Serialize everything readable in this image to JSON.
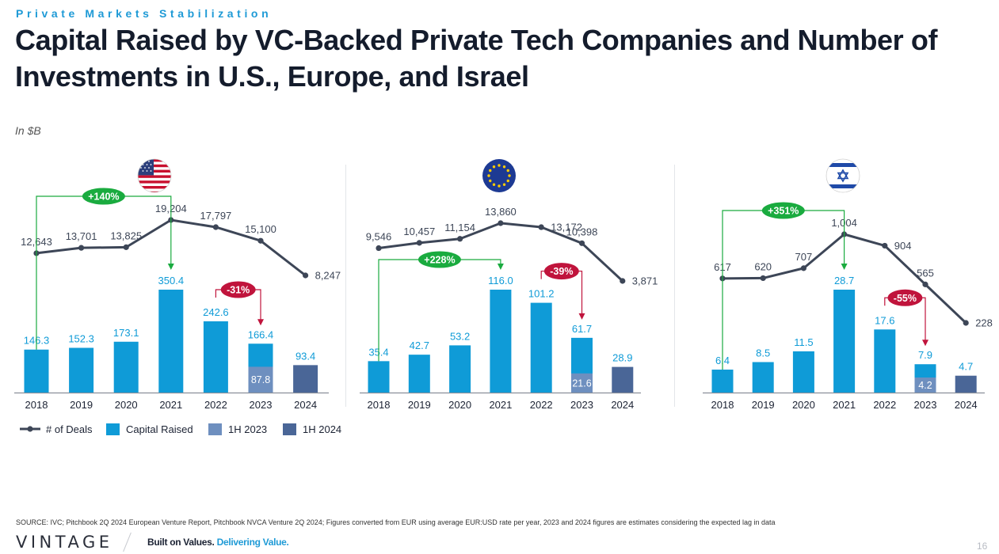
{
  "header": {
    "section": "Private Markets Stabilization",
    "title": "Capital Raised by VC-Backed Private Tech Companies and Number of Investments in U.S., Europe, and Israel",
    "units": "In $B"
  },
  "colors": {
    "capital": "#0f9bd7",
    "half2023": "#6e8fbf",
    "half2024": "#4a6697",
    "deals_line": "#3d4657",
    "growth": "#1aab3f",
    "decline": "#c0143c",
    "axis": "#8a8f99"
  },
  "flags": [
    "us-flag-icon",
    "eu-flag-icon",
    "israel-flag-icon"
  ],
  "chart_data": [
    {
      "type": "bar",
      "region": "U.S.",
      "categories": [
        "2018",
        "2019",
        "2020",
        "2021",
        "2022",
        "2023",
        "2024"
      ],
      "series": [
        {
          "name": "Capital Raised",
          "values": [
            146.3,
            152.3,
            173.1,
            350.4,
            242.6,
            166.4,
            null
          ]
        },
        {
          "name": "1H 2023",
          "values": [
            null,
            null,
            null,
            null,
            null,
            87.8,
            null
          ]
        },
        {
          "name": "1H 2024",
          "values": [
            null,
            null,
            null,
            null,
            null,
            null,
            93.4
          ]
        },
        {
          "name": "# of Deals",
          "type": "line",
          "values": [
            12643,
            13701,
            13825,
            19204,
            17797,
            15100,
            8247
          ]
        }
      ],
      "bar_labels": [
        "146.3",
        "152.3",
        "173.1",
        "350.4",
        "242.6",
        "166.4",
        "93.4"
      ],
      "half_labels": {
        "2023": "87.8"
      },
      "deal_labels": [
        "12,643",
        "13,701",
        "13,825",
        "19,204",
        "17,797",
        "15,100",
        "8,247"
      ],
      "annotations": [
        {
          "text": "+140%",
          "from": "2018",
          "to": "2021",
          "kind": "growth"
        },
        {
          "text": "-31%",
          "from": "2022",
          "to": "2023",
          "kind": "decline"
        }
      ],
      "bar_max": 350.4,
      "deal_range": [
        8247,
        19204
      ]
    },
    {
      "type": "bar",
      "region": "Europe",
      "categories": [
        "2018",
        "2019",
        "2020",
        "2021",
        "2022",
        "2023",
        "2024"
      ],
      "series": [
        {
          "name": "Capital Raised",
          "values": [
            35.4,
            42.7,
            53.2,
            116.0,
            101.2,
            61.7,
            null
          ]
        },
        {
          "name": "1H 2023",
          "values": [
            null,
            null,
            null,
            null,
            null,
            21.6,
            null
          ]
        },
        {
          "name": "1H 2024",
          "values": [
            null,
            null,
            null,
            null,
            null,
            null,
            28.9
          ]
        },
        {
          "name": "# of Deals",
          "type": "line",
          "values": [
            9546,
            10457,
            11154,
            13860,
            13172,
            10398,
            3871
          ]
        }
      ],
      "bar_labels": [
        "35.4",
        "42.7",
        "53.2",
        "116.0",
        "101.2",
        "61.7",
        "28.9"
      ],
      "half_labels": {
        "2023": "21.6"
      },
      "deal_labels": [
        "9,546",
        "10,457",
        "11,154",
        "13,860",
        "13,172",
        "10,398",
        "3,871"
      ],
      "annotations": [
        {
          "text": "+228%",
          "from": "2018",
          "to": "2021",
          "kind": "growth"
        },
        {
          "text": "-39%",
          "from": "2022",
          "to": "2023",
          "kind": "decline"
        }
      ],
      "bar_max": 116.0,
      "deal_range": [
        3871,
        13860
      ]
    },
    {
      "type": "bar",
      "region": "Israel",
      "categories": [
        "2018",
        "2019",
        "2020",
        "2021",
        "2022",
        "2023",
        "2024"
      ],
      "series": [
        {
          "name": "Capital Raised",
          "values": [
            6.4,
            8.5,
            11.5,
            28.7,
            17.6,
            7.9,
            null
          ]
        },
        {
          "name": "1H 2023",
          "values": [
            null,
            null,
            null,
            null,
            null,
            4.2,
            null
          ]
        },
        {
          "name": "1H 2024",
          "values": [
            null,
            null,
            null,
            null,
            null,
            null,
            4.7
          ]
        },
        {
          "name": "# of Deals",
          "type": "line",
          "values": [
            617,
            620,
            707,
            1004,
            904,
            565,
            228
          ]
        }
      ],
      "bar_labels": [
        "6.4",
        "8.5",
        "11.5",
        "28.7",
        "17.6",
        "7.9",
        "4.7"
      ],
      "half_labels": {
        "2023": "4.2"
      },
      "deal_labels": [
        "617",
        "620",
        "707",
        "1,004",
        "904",
        "565",
        "228"
      ],
      "annotations": [
        {
          "text": "+351%",
          "from": "2018",
          "to": "2021",
          "kind": "growth"
        },
        {
          "text": "-55%",
          "from": "2022",
          "to": "2023",
          "kind": "decline"
        }
      ],
      "bar_max": 28.7,
      "deal_range": [
        228,
        1004
      ]
    }
  ],
  "legend": [
    {
      "label": "# of Deals",
      "kind": "line"
    },
    {
      "label": "Capital Raised",
      "kind": "capital"
    },
    {
      "label": "1H 2023",
      "kind": "half2023"
    },
    {
      "label": "1H 2024",
      "kind": "half2024"
    }
  ],
  "footer": {
    "source": "SOURCE: IVC; Pitchbook 2Q 2024 European Venture Report, Pitchbook NVCA Venture 2Q 2024; Figures converted from EUR using average EUR:USD rate per year, 2023 and 2024 figures are estimates considering the expected lag in data",
    "logo": "VINTAGE",
    "tagline_main": "Built on Values.",
    "tagline_accent": "Delivering Value.",
    "page_number": "16"
  }
}
